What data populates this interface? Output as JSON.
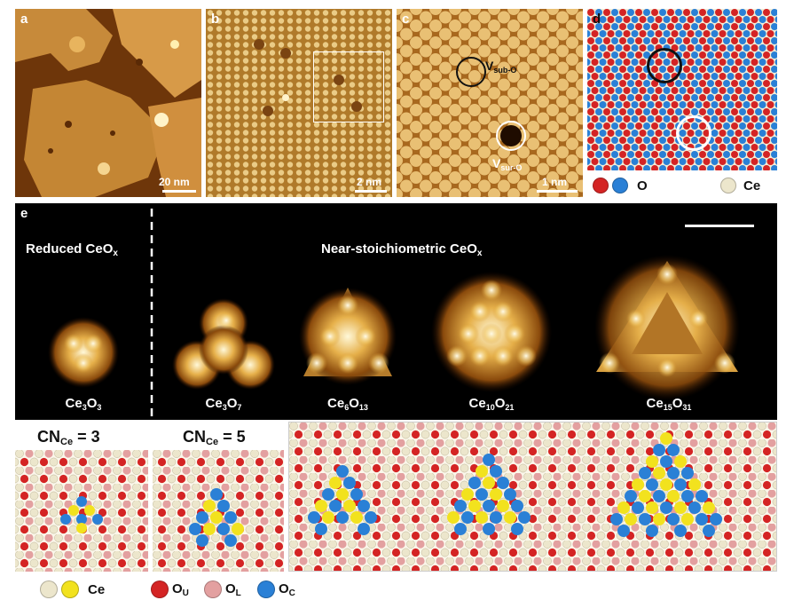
{
  "panel_a": {
    "label": "a",
    "scale": "20 nm"
  },
  "panel_b": {
    "label": "b",
    "scale": "2 nm"
  },
  "panel_c": {
    "label": "c",
    "scale": "1 nm",
    "v_sub": "V",
    "v_sub_sub": "sub-O",
    "v_sur": "V",
    "v_sur_sub": "sur-O"
  },
  "panel_d": {
    "label": "d",
    "legend_o": "O",
    "legend_ce": "Ce"
  },
  "panel_e": {
    "label": "e",
    "reduced_title": "Reduced CeO",
    "reduced_sub": "x",
    "near_title": "Near-stoichiometric CeO",
    "near_sub": "x",
    "formulas": [
      {
        "ce": "3",
        "o": "3"
      },
      {
        "ce": "3",
        "o": "7"
      },
      {
        "ce": "6",
        "o": "13"
      },
      {
        "ce": "10",
        "o": "21"
      },
      {
        "ce": "15",
        "o": "31"
      }
    ]
  },
  "bottom": {
    "cn3": "CN",
    "cn3_sub": "Ce",
    "cn3_val": " = 3",
    "cn5": "CN",
    "cn5_sub": "Ce",
    "cn5_val": " = 5",
    "legend_ce": "Ce",
    "legend_ou": "O",
    "legend_ou_sub": "U",
    "legend_ol": "O",
    "legend_ol_sub": "L",
    "legend_oc": "O",
    "legend_oc_sub": "C"
  },
  "colors": {
    "ce_cream": "#ece6cc",
    "ce_yellow": "#f2e21e",
    "o_red": "#d42424",
    "o_pink": "#e3a0a0",
    "o_blue": "#2a80d6"
  }
}
